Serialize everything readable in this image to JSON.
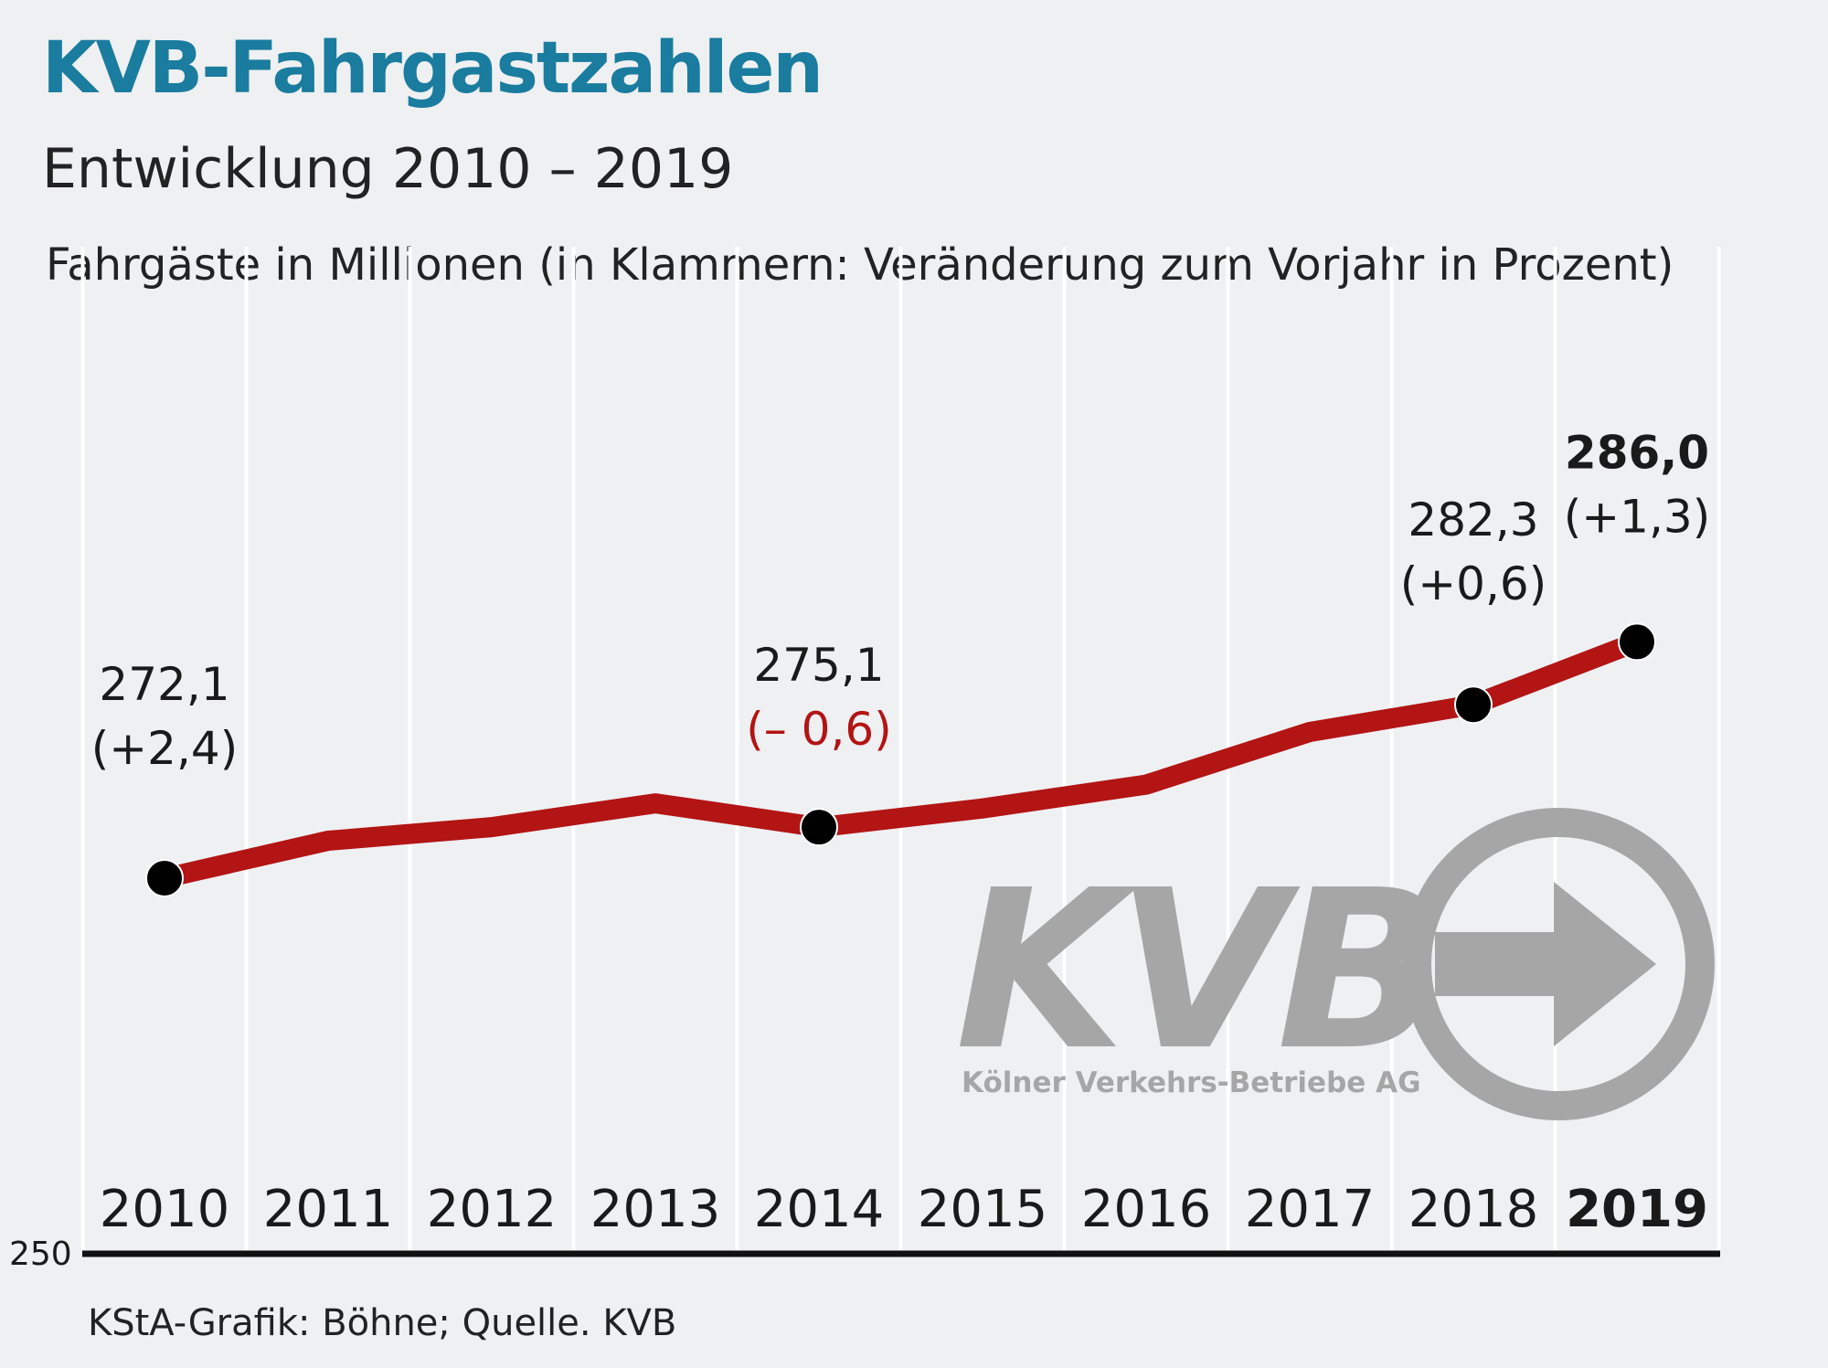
{
  "header": {
    "title": "KVB-Fahrgastzahlen",
    "subtitle": "Entwicklung 2010 – 2019",
    "unit_note": "Fahrgäste in Millionen (in Klammern: Veränderung zum Vorjahr in Prozent)"
  },
  "footer": {
    "source": "KStA-Grafik: Böhne; Quelle. KVB"
  },
  "logo": {
    "text": "KVB",
    "tagline": "Kölner Verkehrs-Betriebe AG"
  },
  "colors": {
    "title": "#1a7c9e",
    "line": "#b31414",
    "negative_change": "#b31414",
    "marker": "#000000",
    "logo": "#a6a6a6",
    "background": "#eef0f2"
  },
  "chart_data": {
    "type": "line",
    "title": "KVB-Fahrgastzahlen",
    "subtitle": "Entwicklung 2010 – 2019",
    "ylabel": "Fahrgäste in Millionen (in Klammern: Veränderung zum Vorjahr in Prozent)",
    "ylim": [
      250,
      290
    ],
    "y_min_label": "250",
    "grid": "vertical",
    "categories": [
      "2010",
      "2011",
      "2012",
      "2013",
      "2014",
      "2015",
      "2016",
      "2017",
      "2018",
      "2019"
    ],
    "series": [
      {
        "values": [
          272.1,
          274.3,
          275.1,
          276.5,
          275.1,
          276.2,
          277.6,
          280.7,
          282.3,
          286.0
        ]
      }
    ],
    "highlight_points": [
      {
        "index": 0,
        "value_label": "272,1",
        "change_label": "(+2,4)",
        "negative": false,
        "bold": false
      },
      {
        "index": 4,
        "value_label": "275,1",
        "change_label": "(– 0,6)",
        "negative": true,
        "bold": false
      },
      {
        "index": 8,
        "value_label": "282,3",
        "change_label": "(+0,6)",
        "negative": false,
        "bold": false
      },
      {
        "index": 9,
        "value_label": "286,0",
        "change_label": "(+1,3)",
        "negative": false,
        "bold": true
      }
    ],
    "bold_category_index": 9
  }
}
